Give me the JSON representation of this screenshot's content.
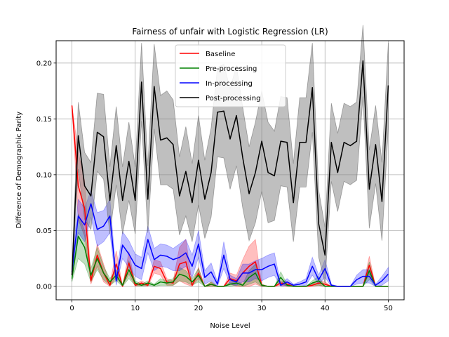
{
  "chart_data": {
    "type": "line",
    "title": "Fairness of unfair with Logistic Regression (LR)",
    "xlabel": "Noise Level",
    "ylabel": "Difference of Demographic Parity",
    "xlim": [
      -2.5,
      52.5
    ],
    "ylim": [
      -0.012,
      0.22
    ],
    "xticks": [
      0,
      10,
      20,
      30,
      40,
      50
    ],
    "yticks": [
      0.0,
      0.05,
      0.1,
      0.15,
      0.2
    ],
    "ytick_labels": [
      "0.00",
      "0.05",
      "0.10",
      "0.15",
      "0.20"
    ],
    "grid": true,
    "legend_position": "top-center",
    "x": [
      0,
      1,
      2,
      3,
      4,
      5,
      6,
      7,
      8,
      9,
      10,
      11,
      12,
      13,
      14,
      15,
      16,
      17,
      18,
      19,
      20,
      21,
      22,
      23,
      24,
      25,
      26,
      27,
      28,
      29,
      30,
      31,
      32,
      33,
      34,
      35,
      36,
      37,
      38,
      39,
      40,
      41,
      42,
      43,
      44,
      45,
      46,
      47,
      48,
      49,
      50
    ],
    "series": [
      {
        "name": "Baseline",
        "color": "#ff0000",
        "values": [
          0.162,
          0.09,
          0.07,
          0.005,
          0.028,
          0.012,
          0.001,
          0.02,
          0.0,
          0.021,
          0.001,
          0.003,
          0.001,
          0.018,
          0.016,
          0.004,
          0.003,
          0.02,
          0.022,
          0.001,
          0.012,
          0.0,
          0.002,
          0.0,
          0.0,
          0.007,
          0.005,
          0.012,
          0.018,
          0.022,
          0.001,
          0.0,
          0.0,
          0.003,
          0.002,
          0.0,
          0.0,
          0.0,
          0.001,
          0.003,
          0.002,
          0.0,
          0.0,
          0.0,
          0.0,
          0.0,
          0.0,
          0.019,
          0.0,
          0.0,
          0.0
        ],
        "band": [
          0.0,
          0.03,
          0.025,
          0.003,
          0.01,
          0.008,
          0.001,
          0.012,
          0.0,
          0.01,
          0.001,
          0.002,
          0.001,
          0.006,
          0.006,
          0.003,
          0.002,
          0.015,
          0.02,
          0.001,
          0.005,
          0.0,
          0.002,
          0.0,
          0.0,
          0.005,
          0.005,
          0.012,
          0.018,
          0.02,
          0.001,
          0.0,
          0.0,
          0.002,
          0.002,
          0.0,
          0.0,
          0.0,
          0.001,
          0.002,
          0.002,
          0.0,
          0.0,
          0.0,
          0.0,
          0.0,
          0.0,
          0.008,
          0.0,
          0.0,
          0.0
        ]
      },
      {
        "name": "Pre-processing",
        "color": "#008000",
        "values": [
          0.007,
          0.045,
          0.035,
          0.01,
          0.025,
          0.012,
          0.004,
          0.01,
          0.001,
          0.015,
          0.003,
          0.001,
          0.003,
          0.001,
          0.004,
          0.003,
          0.004,
          0.011,
          0.009,
          0.004,
          0.01,
          0.0,
          0.002,
          0.0,
          0.0,
          0.002,
          0.003,
          0.001,
          0.008,
          0.012,
          0.001,
          0.0,
          0.0,
          0.008,
          0.001,
          0.0,
          0.0,
          0.0,
          0.003,
          0.005,
          0.0,
          0.0,
          0.0,
          0.0,
          0.0,
          0.0,
          0.0,
          0.014,
          0.0,
          0.0,
          0.0
        ],
        "band": [
          0.003,
          0.02,
          0.015,
          0.006,
          0.01,
          0.006,
          0.003,
          0.005,
          0.001,
          0.008,
          0.002,
          0.001,
          0.002,
          0.001,
          0.003,
          0.002,
          0.003,
          0.006,
          0.005,
          0.003,
          0.006,
          0.0,
          0.002,
          0.0,
          0.0,
          0.002,
          0.002,
          0.001,
          0.006,
          0.008,
          0.001,
          0.0,
          0.0,
          0.005,
          0.001,
          0.0,
          0.0,
          0.0,
          0.002,
          0.004,
          0.0,
          0.0,
          0.0,
          0.0,
          0.0,
          0.0,
          0.0,
          0.008,
          0.0,
          0.0,
          0.0
        ]
      },
      {
        "name": "In-processing",
        "color": "#0000ff",
        "values": [
          0.013,
          0.063,
          0.055,
          0.074,
          0.051,
          0.054,
          0.063,
          0.005,
          0.037,
          0.029,
          0.019,
          0.016,
          0.042,
          0.024,
          0.028,
          0.027,
          0.024,
          0.026,
          0.03,
          0.018,
          0.038,
          0.008,
          0.013,
          0.002,
          0.028,
          0.006,
          0.004,
          0.012,
          0.012,
          0.015,
          0.015,
          0.018,
          0.02,
          0.001,
          0.004,
          0.001,
          0.002,
          0.004,
          0.018,
          0.006,
          0.016,
          0.001,
          0.0,
          0.0,
          0.0,
          0.006,
          0.009,
          0.009,
          0.001,
          0.005,
          0.011
        ],
        "band": [
          0.005,
          0.015,
          0.015,
          0.012,
          0.015,
          0.014,
          0.015,
          0.004,
          0.012,
          0.012,
          0.01,
          0.01,
          0.012,
          0.01,
          0.01,
          0.01,
          0.01,
          0.012,
          0.012,
          0.01,
          0.012,
          0.006,
          0.008,
          0.002,
          0.012,
          0.004,
          0.003,
          0.008,
          0.008,
          0.008,
          0.01,
          0.01,
          0.01,
          0.001,
          0.003,
          0.001,
          0.002,
          0.003,
          0.008,
          0.004,
          0.008,
          0.001,
          0.0,
          0.0,
          0.0,
          0.004,
          0.006,
          0.006,
          0.001,
          0.004,
          0.006
        ]
      },
      {
        "name": "Post-processing",
        "color": "#000000",
        "values": [
          0.01,
          0.135,
          0.09,
          0.081,
          0.138,
          0.134,
          0.077,
          0.126,
          0.077,
          0.112,
          0.077,
          0.183,
          0.078,
          0.179,
          0.131,
          0.133,
          0.127,
          0.081,
          0.103,
          0.075,
          0.113,
          0.078,
          0.102,
          0.156,
          0.157,
          0.132,
          0.153,
          0.115,
          0.083,
          0.102,
          0.13,
          0.102,
          0.099,
          0.13,
          0.129,
          0.075,
          0.129,
          0.129,
          0.178,
          0.056,
          0.028,
          0.129,
          0.102,
          0.129,
          0.126,
          0.13,
          0.202,
          0.087,
          0.127,
          0.076,
          0.18
        ],
        "band": [
          0.005,
          0.03,
          0.03,
          0.03,
          0.035,
          0.038,
          0.03,
          0.035,
          0.03,
          0.035,
          0.03,
          0.035,
          0.03,
          0.038,
          0.04,
          0.042,
          0.04,
          0.035,
          0.04,
          0.035,
          0.04,
          0.035,
          0.04,
          0.04,
          0.042,
          0.045,
          0.045,
          0.045,
          0.042,
          0.045,
          0.045,
          0.045,
          0.04,
          0.04,
          0.04,
          0.035,
          0.04,
          0.04,
          0.04,
          0.03,
          0.025,
          0.035,
          0.035,
          0.035,
          0.035,
          0.035,
          0.032,
          0.035,
          0.035,
          0.035,
          0.038
        ]
      }
    ]
  }
}
